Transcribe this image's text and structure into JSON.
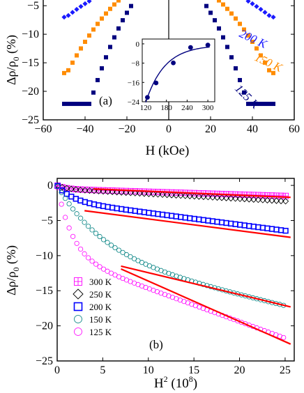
{
  "chart_data": [
    {
      "type": "scatter",
      "panel_label": "(a)",
      "xlabel": "H (kOe)",
      "ylabel": "Δρ/ρ",
      "ylabel_sub": "0",
      "ylabel_unit": " (%)",
      "xlim": [
        -60,
        60
      ],
      "ylim": [
        -25,
        -4
      ],
      "x_ticks": [
        -60,
        -40,
        -20,
        0,
        20,
        40,
        60
      ],
      "y_ticks": [
        -5,
        -10,
        -15,
        -20,
        -25
      ],
      "series": [
        {
          "name": "200 K",
          "color": "#1a1aff",
          "marker": "diamond",
          "a": 0.00104,
          "ymin": -7.0
        },
        {
          "name": "150 K",
          "color": "#ff8c00",
          "marker": "square",
          "a": 0.00236,
          "ymin": -16.8
        },
        {
          "name": "125 K",
          "color": "#00007f",
          "marker": "square",
          "a": 0.0052,
          "ymin": -22.2
        }
      ],
      "x_values": [
        -50,
        -48,
        -46,
        -44,
        -42,
        -40,
        -38,
        -36,
        -34,
        -32,
        -30,
        -28,
        -26,
        -24,
        -22,
        -20,
        -18,
        -16,
        -14,
        -12,
        -10,
        10,
        12,
        14,
        16,
        18,
        20,
        22,
        24,
        26,
        28,
        30,
        32,
        34,
        36,
        38,
        40,
        42,
        44,
        46,
        48,
        50
      ],
      "inset": {
        "xlim": [
          110,
          320
        ],
        "ylim": [
          -24,
          2
        ],
        "x_ticks": [
          120,
          180,
          240,
          300
        ],
        "y_ticks": [
          0,
          -8,
          -16,
          -24
        ],
        "points": [
          [
            125,
            -22.2
          ],
          [
            150,
            -16.2
          ],
          [
            200,
            -7.9
          ],
          [
            250,
            -1.5
          ],
          [
            300,
            -0.5
          ]
        ],
        "curve_color": "#00007f"
      }
    },
    {
      "type": "scatter",
      "panel_label": "(b)",
      "xlabel": "H",
      "xlabel_sup": "2",
      "xlabel_unit": " (10",
      "xlabel_unit_sup": "8",
      "xlabel_unit_end": ")",
      "ylabel": "Δρ/ρ",
      "ylabel_sub": "0",
      "ylabel_unit": " (%)",
      "xlim": [
        0,
        26
      ],
      "ylim": [
        -25,
        1
      ],
      "x_ticks": [
        0,
        5,
        10,
        15,
        20,
        25
      ],
      "y_ticks": [
        0,
        -5,
        -10,
        -15,
        -20,
        -25
      ],
      "series": [
        {
          "name": "300 K",
          "color": "#ff00ff",
          "marker": "boxplus",
          "A": 0.5,
          "B": 0.5,
          "k": 1.2,
          "slope": -0.04
        },
        {
          "name": "250 K",
          "color": "#000000",
          "marker": "diamond-open",
          "A": 0.5,
          "B": 0.5,
          "k": 1.0,
          "slope": -0.07
        },
        {
          "name": "200 K",
          "color": "#0000ff",
          "marker": "square-open",
          "A": 2.2,
          "B": 2.2,
          "k": 0.6,
          "slope": -0.17
        },
        {
          "name": "150 K",
          "color": "#008080",
          "marker": "circle-open",
          "A": 9.7,
          "B": 9.7,
          "k": 0.2,
          "slope": -0.3
        },
        {
          "name": "125 K",
          "color": "#ff00ff",
          "marker": "circle-open",
          "A": 10.0,
          "B": 10.0,
          "k": 0.6,
          "slope": -0.47
        }
      ],
      "fit_lines": [
        {
          "color": "#ff0000",
          "x": [
            4,
            25.6
          ],
          "y": [
            -0.5,
            -1.7
          ]
        },
        {
          "color": "#ff0000",
          "x": [
            3,
            25.6
          ],
          "y": [
            -3.6,
            -7.4
          ]
        },
        {
          "color": "#ff0000",
          "x": [
            7,
            25.6
          ],
          "y": [
            -11.5,
            -17.3
          ]
        },
        {
          "color": "#ff0000",
          "x": [
            7,
            25.6
          ],
          "y": [
            -11.9,
            -22.6
          ]
        }
      ]
    }
  ]
}
